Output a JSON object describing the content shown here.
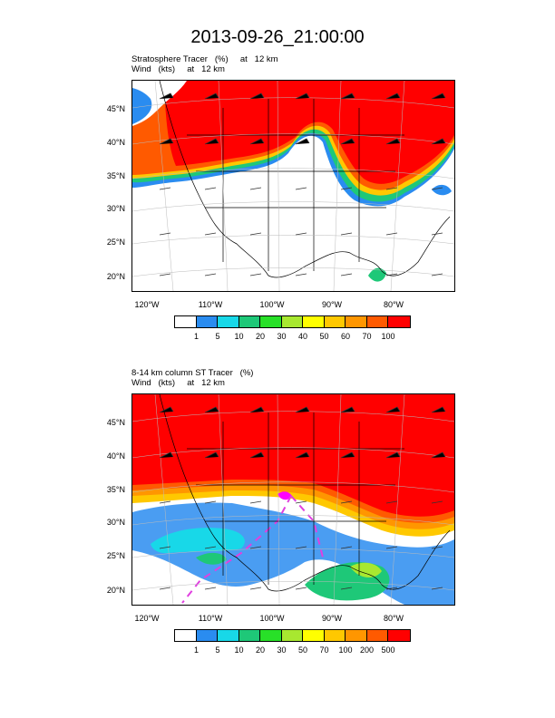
{
  "title": "2013-09-26_21:00:00",
  "panels": [
    {
      "line1": "Stratosphere Tracer   (%)     at   12 km",
      "line2": "Wind   (kts)     at   12 km",
      "lat_labels": [
        "45°N",
        "40°N",
        "35°N",
        "30°N",
        "25°N",
        "20°N"
      ],
      "lon_labels": [
        "120°W",
        "110°W",
        "100°W",
        "90°W",
        "80°W"
      ],
      "colorbar": {
        "colors": [
          "#ffffff",
          "#2a8cf0",
          "#18d8e8",
          "#1ec878",
          "#28e028",
          "#a8e830",
          "#ffff00",
          "#ffc800",
          "#ff9600",
          "#ff5a00",
          "#ff0000"
        ],
        "labels": [
          "1",
          "5",
          "10",
          "20",
          "30",
          "40",
          "50",
          "60",
          "70",
          "100"
        ]
      }
    },
    {
      "line1": "8-14 km column ST Tracer   (%)",
      "line2": "Wind   (kts)     at   12 km",
      "lat_labels": [
        "45°N",
        "40°N",
        "35°N",
        "30°N",
        "25°N",
        "20°N"
      ],
      "lon_labels": [
        "120°W",
        "110°W",
        "100°W",
        "90°W",
        "80°W"
      ],
      "colorbar": {
        "colors": [
          "#ffffff",
          "#2a8cf0",
          "#18d8e8",
          "#1ec878",
          "#28e028",
          "#a8e830",
          "#ffff00",
          "#ffc800",
          "#ff9600",
          "#ff5a00",
          "#ff0000"
        ],
        "labels": [
          "1",
          "5",
          "10",
          "20",
          "30",
          "50",
          "70",
          "100",
          "200",
          "500"
        ]
      }
    }
  ]
}
